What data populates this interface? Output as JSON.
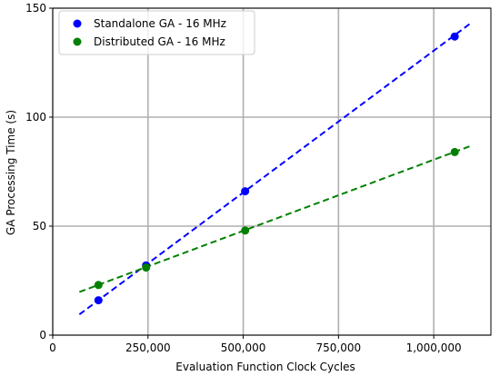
{
  "chart_data": {
    "type": "scatter",
    "title": "",
    "xlabel": "Evaluation Function Clock Cycles",
    "ylabel": "GA Processing Time (s)",
    "xlim": [
      0,
      1150000
    ],
    "ylim": [
      0,
      150
    ],
    "x_ticks": [
      0,
      250000,
      500000,
      750000,
      1000000
    ],
    "x_tick_labels": [
      "0",
      "250,000",
      "500,000",
      "750,000",
      "1,000,000"
    ],
    "y_ticks": [
      0,
      50,
      100,
      150
    ],
    "y_tick_labels": [
      "0",
      "50",
      "100",
      "150"
    ],
    "grid": true,
    "legend_position": "top-left",
    "series": [
      {
        "name": "Standalone GA - 16 MHz",
        "color": "#0000ff",
        "points": [
          {
            "x": 120000,
            "y": 16
          },
          {
            "x": 245000,
            "y": 32
          },
          {
            "x": 505000,
            "y": 66
          },
          {
            "x": 1055000,
            "y": 137
          }
        ],
        "trend": {
          "x": [
            70000,
            1100000
          ],
          "y": [
            9.5,
            143.5
          ]
        }
      },
      {
        "name": "Distributed GA -  16 MHz",
        "color": "#008000",
        "points": [
          {
            "x": 120000,
            "y": 23
          },
          {
            "x": 245000,
            "y": 31
          },
          {
            "x": 505000,
            "y": 48
          },
          {
            "x": 1055000,
            "y": 84
          }
        ],
        "trend": {
          "x": [
            70000,
            1100000
          ],
          "y": [
            19.8,
            87
          ]
        }
      }
    ]
  }
}
